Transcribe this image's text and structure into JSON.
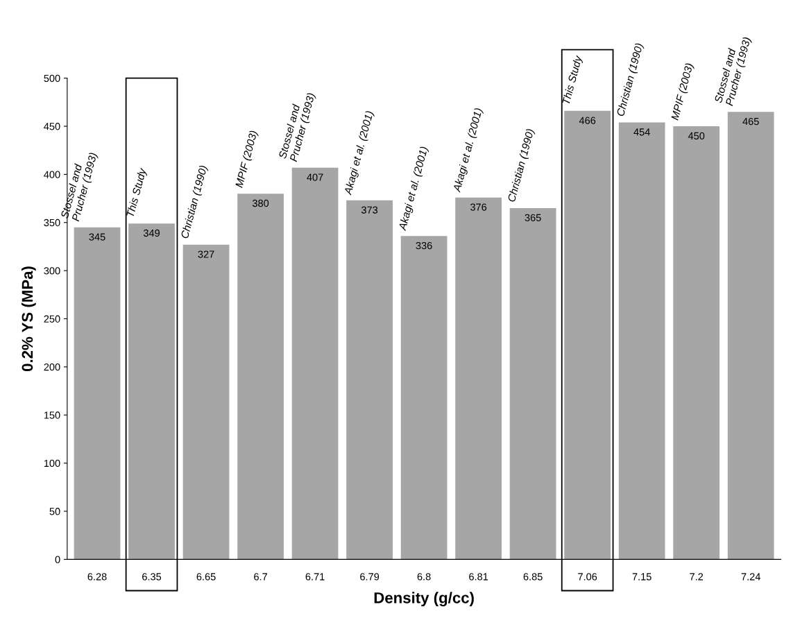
{
  "chart_data": {
    "type": "bar",
    "xlabel": "Density (g/cc)",
    "ylabel": "0.2% YS (MPa)",
    "categories": [
      "6.28",
      "6.35",
      "6.65",
      "6.7",
      "6.71",
      "6.79",
      "6.8",
      "6.81",
      "6.85",
      "7.06",
      "7.15",
      "7.2",
      "7.24"
    ],
    "values": [
      345,
      349,
      327,
      380,
      407,
      373,
      336,
      376,
      365,
      466,
      454,
      450,
      465
    ],
    "color": "#a6a6a6",
    "data_labels": true,
    "ylim": [
      0,
      500
    ],
    "yticks": [
      0,
      50,
      100,
      150,
      200,
      250,
      300,
      350,
      400,
      450,
      500
    ],
    "grid": false,
    "annotations": [
      {
        "text": "Stossel and\nPrucher (1993)",
        "x": "6.28",
        "y": 345
      },
      {
        "text": "This Study",
        "x": "6.35",
        "y": 349
      },
      {
        "text": "Christian (1990)",
        "x": "6.65",
        "y": 327
      },
      {
        "text": "MPIF (2003)",
        "x": "6.7",
        "y": 380
      },
      {
        "text": "Stossel and\nPrucher (1993)",
        "x": "6.71",
        "y": 407
      },
      {
        "text": "Akagi et al. (2001)",
        "x": "6.79",
        "y": 373
      },
      {
        "text": "Akagi et al. (2001)",
        "x": "6.8",
        "y": 336
      },
      {
        "text": "Akagi et al. (2001)",
        "x": "6.81",
        "y": 376
      },
      {
        "text": "Christian (1990)",
        "x": "6.85",
        "y": 365
      },
      {
        "text": "This Study",
        "x": "7.06",
        "y": 466
      },
      {
        "text": "Christian (1990)",
        "x": "7.15",
        "y": 454
      },
      {
        "text": "MPIF (2003)",
        "x": "7.2",
        "y": 450
      },
      {
        "text": "Stossel and\nPrucher (1993)",
        "x": "7.24",
        "y": 465
      }
    ]
  }
}
